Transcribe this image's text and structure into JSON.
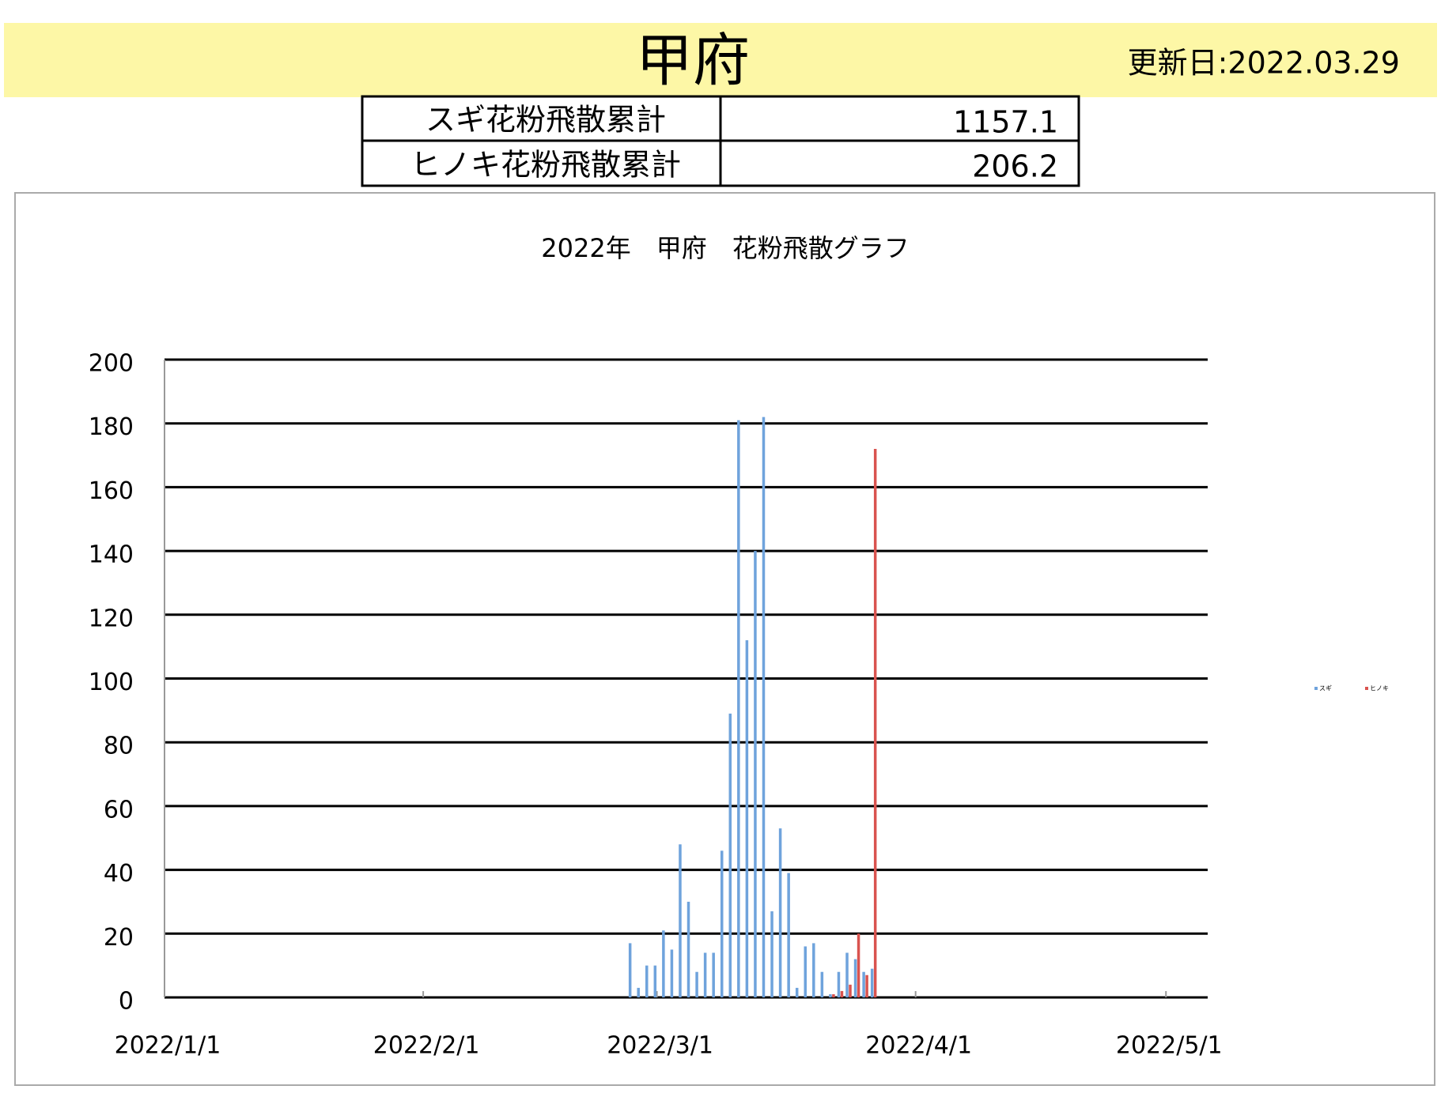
{
  "header": {
    "title": "甲府",
    "updated": "更新日:2022.03.29"
  },
  "table": {
    "rows": [
      [
        "スギ花粉飛散累計",
        1157.1
      ],
      [
        "ヒノキ花粉飛散累計",
        206.2
      ]
    ]
  },
  "chart_data": {
    "type": "bar",
    "title": "2022年　甲府　花粉飛散グラフ",
    "x": [
      "2022/2/26",
      "2022/2/27",
      "2022/2/28",
      "2022/3/1",
      "2022/3/2",
      "2022/3/3",
      "2022/3/4",
      "2022/3/5",
      "2022/3/6",
      "2022/3/7",
      "2022/3/8",
      "2022/3/9",
      "2022/3/10",
      "2022/3/11",
      "2022/3/12",
      "2022/3/13",
      "2022/3/14",
      "2022/3/15",
      "2022/3/16",
      "2022/3/17",
      "2022/3/18",
      "2022/3/19",
      "2022/3/20",
      "2022/3/21",
      "2022/3/22",
      "2022/3/23",
      "2022/3/24",
      "2022/3/25",
      "2022/3/26",
      "2022/3/27"
    ],
    "series": [
      {
        "name": "スギ",
        "color": "#6fa3dc",
        "values": [
          17,
          3,
          10,
          10,
          21,
          15,
          48,
          30,
          8,
          14,
          14,
          46,
          89,
          181,
          112,
          140,
          182,
          27,
          53,
          39,
          3,
          16,
          17,
          8,
          1,
          8,
          14,
          12,
          8,
          9
        ]
      },
      {
        "name": "ヒノキ",
        "color": "#d9534f",
        "values": [
          0,
          0,
          0,
          0,
          0,
          0,
          0,
          0,
          0,
          0,
          0,
          0,
          0,
          0,
          0,
          0,
          0,
          0,
          0,
          0,
          0,
          0,
          0,
          0,
          1,
          2,
          4,
          20,
          7,
          172
        ]
      }
    ],
    "xlim": [
      "2022/1/1",
      "2022/5/6"
    ],
    "xticks": [
      "2022/1/1",
      "2022/2/1",
      "2022/3/1",
      "2022/4/1",
      "2022/5/1"
    ],
    "ylim": [
      0,
      200
    ],
    "yticks": [
      0,
      20,
      40,
      60,
      80,
      100,
      120,
      140,
      160,
      180,
      200
    ],
    "grid": true,
    "legend": "right"
  }
}
